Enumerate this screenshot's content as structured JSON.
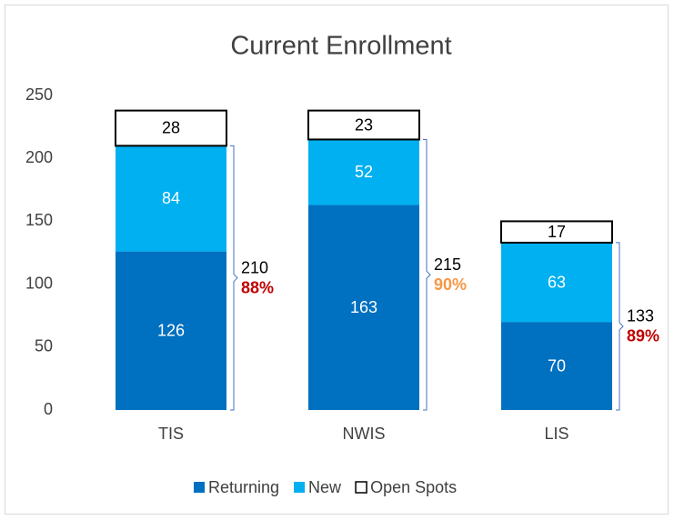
{
  "chart_data": {
    "type": "stacked_bar",
    "title": "Current Enrollment",
    "categories": [
      "TIS",
      "NWIS",
      "LIS"
    ],
    "series": [
      {
        "name": "Returning",
        "color": "#0070c0",
        "label_color": "#ffffff",
        "values": [
          126,
          163,
          70
        ]
      },
      {
        "name": "New",
        "color": "#00b0f0",
        "label_color": "#ffffff",
        "values": [
          84,
          52,
          63
        ]
      },
      {
        "name": "Open Spots",
        "color": "#ffffff",
        "edge": "#000000",
        "label_color": "#000000",
        "values": [
          28,
          23,
          17
        ]
      }
    ],
    "annotations": [
      {
        "total": 210,
        "percent": "88%",
        "color": "#c00000"
      },
      {
        "total": 215,
        "percent": "90%",
        "color": "#f79646"
      },
      {
        "total": 133,
        "percent": "89%",
        "color": "#c00000"
      }
    ],
    "ylim": [
      0,
      250
    ],
    "yticks": [
      0,
      50,
      100,
      150,
      200,
      250
    ],
    "grid": false
  }
}
